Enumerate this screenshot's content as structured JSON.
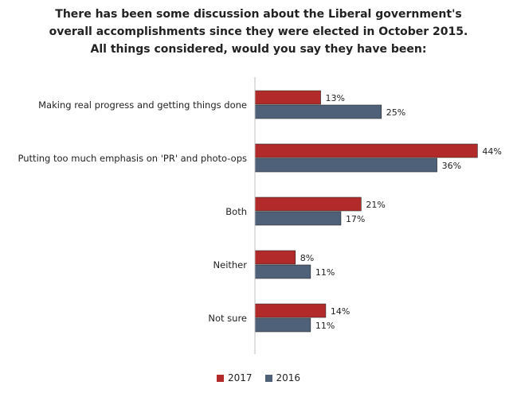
{
  "chart_data": {
    "type": "bar",
    "orientation": "horizontal",
    "title": [
      "There has been some discussion about the Liberal government's",
      "overall accomplishments since they were elected in October 2015.",
      "All things considered, would you say  they have been:"
    ],
    "categories": [
      "Making real progress and getting things done",
      "Putting too much emphasis on 'PR' and photo-ops",
      "Both",
      "Neither",
      "Not sure"
    ],
    "series": [
      {
        "name": "2017",
        "color": "#b22a2a",
        "values": [
          13,
          44,
          21,
          8,
          14
        ]
      },
      {
        "name": "2016",
        "color": "#4f6179",
        "values": [
          25,
          36,
          17,
          11,
          11
        ]
      }
    ],
    "value_suffix": "%",
    "xlim": [
      0,
      50
    ],
    "grid": false,
    "legend_position": "bottom-center"
  }
}
